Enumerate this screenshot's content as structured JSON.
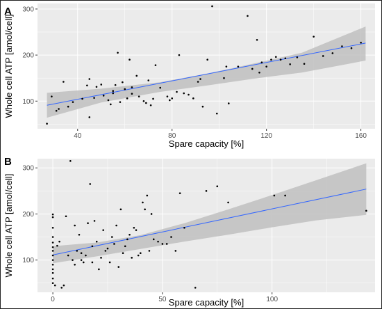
{
  "chart_data": [
    {
      "type": "scatter",
      "panel_label": "A",
      "xlabel": "Spare capacity [%]",
      "ylabel": "Whole cell ATP [amol/cell]",
      "xlim": [
        23,
        166
      ],
      "ylim": [
        40,
        312
      ],
      "xticks": [
        40,
        80,
        120,
        160
      ],
      "yticks": [
        100,
        200,
        300
      ],
      "grid": true,
      "colors": {
        "panel_bg": "#ebebeb",
        "grid": "#ffffff",
        "point": "#000000",
        "fit": "#3366ff",
        "band": "#bfbfbf"
      },
      "fit": {
        "x": [
          27,
          162
        ],
        "y": [
          91,
          226
        ]
      },
      "band": {
        "x": [
          27,
          50,
          75,
          95,
          115,
          135,
          162
        ],
        "upper": [
          118,
          127,
          141,
          160,
          182,
          205,
          262
        ],
        "lower": [
          64,
          97,
          120,
          134,
          149,
          162,
          188
        ]
      },
      "points": {
        "x": [
          27,
          29,
          32,
          34,
          36,
          42,
          44,
          45,
          45,
          47,
          48,
          50,
          51,
          53,
          54,
          55,
          55,
          56,
          57,
          58,
          59,
          60,
          61,
          62,
          63,
          63,
          65,
          66,
          68,
          69,
          70,
          71,
          72,
          73,
          75,
          78,
          79,
          80,
          82,
          83,
          85,
          87,
          89,
          91,
          92,
          93,
          95,
          97,
          99,
          102,
          103,
          104,
          108,
          112,
          114,
          116,
          117,
          118,
          120,
          122,
          124,
          126,
          128,
          130,
          133,
          136,
          140,
          144,
          148,
          152,
          156,
          160,
          31,
          38
        ],
        "y": [
          51,
          110,
          83,
          142,
          88,
          105,
          134,
          65,
          148,
          107,
          131,
          136,
          112,
          102,
          93,
          117,
          122,
          135,
          205,
          98,
          141,
          126,
          106,
          190,
          116,
          130,
          155,
          110,
          100,
          96,
          145,
          91,
          105,
          178,
          129,
          110,
          102,
          106,
          120,
          200,
          117,
          114,
          106,
          142,
          148,
          88,
          190,
          306,
          73,
          150,
          175,
          95,
          175,
          285,
          170,
          233,
          162,
          184,
          175,
          190,
          196,
          190,
          193,
          180,
          195,
          181,
          240,
          198,
          204,
          219,
          215,
          227,
          79,
          98
        ]
      }
    },
    {
      "type": "scatter",
      "panel_label": "B",
      "xlabel": "Spare capacity [%]",
      "ylabel": "Whole cell ATP [amol/cell]",
      "xlim": [
        -7,
        147
      ],
      "ylim": [
        30,
        320
      ],
      "xticks": [
        0,
        50,
        100
      ],
      "yticks": [
        100,
        200,
        300
      ],
      "grid": true,
      "colors": {
        "panel_bg": "#ebebeb",
        "grid": "#ffffff",
        "point": "#000000",
        "fit": "#3366ff",
        "band": "#bfbfbf"
      },
      "fit": {
        "x": [
          0,
          143
        ],
        "y": [
          111,
          254
        ]
      },
      "band": {
        "x": [
          0,
          20,
          40,
          60,
          80,
          100,
          120,
          143
        ],
        "upper": [
          130,
          138,
          154,
          180,
          210,
          241,
          273,
          310
        ],
        "lower": [
          93,
          108,
          124,
          140,
          155,
          171,
          186,
          198
        ]
      },
      "points": {
        "x": [
          0,
          0,
          0,
          0,
          0,
          0,
          0,
          0,
          0,
          0,
          0,
          0,
          0,
          0,
          1,
          2,
          3,
          4,
          5,
          6,
          7,
          8,
          9,
          10,
          10,
          11,
          12,
          13,
          13,
          14,
          15,
          16,
          17,
          18,
          18,
          19,
          20,
          21,
          22,
          23,
          24,
          25,
          26,
          27,
          28,
          29,
          30,
          31,
          32,
          33,
          34,
          35,
          36,
          37,
          38,
          39,
          40,
          41,
          42,
          43,
          44,
          45,
          46,
          48,
          50,
          52,
          54,
          56,
          58,
          60,
          65,
          70,
          75,
          80,
          101,
          106,
          143
        ],
        "y": [
          199,
          193,
          170,
          150,
          138,
          128,
          120,
          110,
          100,
          90,
          80,
          72,
          60,
          50,
          45,
          131,
          140,
          40,
          45,
          195,
          110,
          315,
          100,
          90,
          175,
          120,
          155,
          115,
          100,
          95,
          110,
          180,
          265,
          130,
          95,
          185,
          140,
          80,
          105,
          165,
          120,
          125,
          95,
          150,
          135,
          175,
          85,
          210,
          115,
          130,
          145,
          155,
          105,
          170,
          165,
          110,
          115,
          225,
          210,
          240,
          120,
          200,
          145,
          140,
          135,
          135,
          150,
          120,
          245,
          170,
          40,
          250,
          260,
          225,
          240,
          240,
          207
        ]
      }
    }
  ]
}
